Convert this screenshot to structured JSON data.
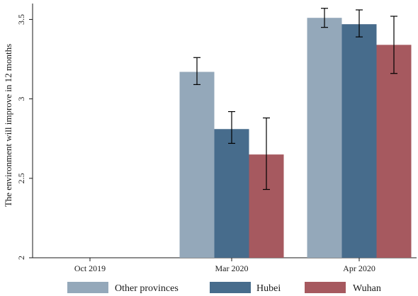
{
  "chart_data": {
    "type": "bar",
    "title": "",
    "xlabel": "",
    "ylabel": "The environment will improve in 12 months",
    "ylim": [
      2,
      3.6
    ],
    "y_ticks": [
      2,
      2.5,
      3,
      3.5
    ],
    "y_tick_labels": [
      "2",
      "2.5",
      "3",
      "3.5"
    ],
    "categories": [
      "Oct 2019",
      "Mar 2020",
      "Apr 2020"
    ],
    "series": [
      {
        "name": "Other provinces",
        "color": "#94a8ba",
        "values": [
          null,
          3.17,
          3.51
        ],
        "ci_low": [
          null,
          3.09,
          3.45
        ],
        "ci_high": [
          null,
          3.26,
          3.57
        ]
      },
      {
        "name": "Hubei",
        "color": "#476c8c",
        "values": [
          null,
          2.81,
          3.47
        ],
        "ci_low": [
          null,
          2.72,
          3.39
        ],
        "ci_high": [
          null,
          2.92,
          3.56
        ]
      },
      {
        "name": "Wuhan",
        "color": "#a6595f",
        "values": [
          null,
          2.65,
          3.34
        ],
        "ci_low": [
          null,
          2.43,
          3.16
        ],
        "ci_high": [
          null,
          2.88,
          3.52
        ]
      }
    ],
    "grid": false,
    "legend_position": "bottom"
  }
}
